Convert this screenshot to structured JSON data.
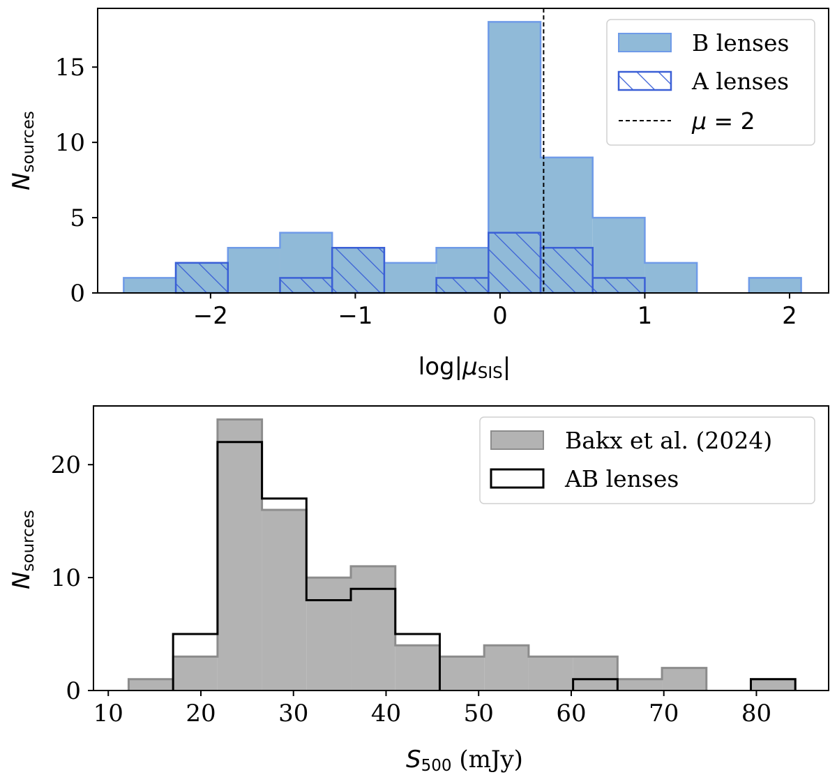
{
  "chart_data": [
    {
      "type": "bar",
      "panel": "top",
      "xlabel": "log|μSIS|",
      "xlabel_parts": {
        "prefix": "log|",
        "symbol": "μ",
        "sub": "SIS",
        "suffix": "|"
      },
      "ylabel_parts": {
        "symbol": "N",
        "sub": "sources"
      },
      "xlim": [
        -2.78,
        2.27
      ],
      "ylim": [
        0,
        18.9
      ],
      "xticks": [
        -2,
        -1,
        0,
        1,
        2
      ],
      "xtick_labels": [
        "−2",
        "−1",
        "0",
        "1",
        "2"
      ],
      "yticks": [
        0,
        5,
        10,
        15
      ],
      "ytick_labels": [
        "0",
        "5",
        "10",
        "15"
      ],
      "bin_edges": [
        -2.6,
        -2.24,
        -1.88,
        -1.52,
        -1.16,
        -0.8,
        -0.44,
        -0.08,
        0.28,
        0.64,
        1.0,
        1.36,
        1.72,
        2.08
      ],
      "series": [
        {
          "name": "B lenses",
          "style": "filled",
          "color": "#90bad8",
          "edge_color": "#6f9be8",
          "values": [
            1,
            2,
            3,
            4,
            3,
            2,
            3,
            18,
            9,
            5,
            2,
            0,
            1
          ]
        },
        {
          "name": "A lenses",
          "style": "hatched",
          "color": "#3a5fd6",
          "values": [
            0,
            2,
            0,
            1,
            3,
            0,
            1,
            4,
            3,
            1,
            0,
            0,
            0
          ]
        }
      ],
      "vline": {
        "x": 0.301,
        "label": "μ = 2",
        "label_parts": {
          "symbol": "μ",
          "rest": " = 2"
        },
        "style": "dashed",
        "color": "#000000"
      },
      "legend": {
        "placement": "top-right",
        "entries": [
          "B lenses",
          "A lenses",
          "μ = 2"
        ]
      }
    },
    {
      "type": "bar",
      "panel": "bottom",
      "xlabel": "S500 (mJy)",
      "xlabel_parts": {
        "symbol": "S",
        "sub": "500",
        "suffix": " (mJy)"
      },
      "ylabel_parts": {
        "symbol": "N",
        "sub": "sources"
      },
      "xlim": [
        8.4,
        87.8
      ],
      "ylim": [
        0,
        25.2
      ],
      "xticks": [
        10,
        20,
        30,
        40,
        50,
        60,
        70,
        80
      ],
      "xtick_labels": [
        "10",
        "20",
        "30",
        "40",
        "50",
        "60",
        "70",
        "80"
      ],
      "yticks": [
        0,
        10,
        20
      ],
      "ytick_labels": [
        "0",
        "10",
        "20"
      ],
      "bin_edges": [
        12.2,
        17.0,
        21.8,
        26.6,
        31.4,
        36.2,
        41.0,
        45.8,
        50.6,
        55.4,
        60.2,
        65.0,
        69.8,
        74.6,
        79.4,
        84.2
      ],
      "series": [
        {
          "name": "Bakx et al. (2024)",
          "style": "filled",
          "color": "#b3b3b3",
          "edge_color": "#8c8c8c",
          "values": [
            1,
            3,
            24,
            16,
            10,
            11,
            4,
            3,
            4,
            3,
            3,
            1,
            2,
            0,
            1
          ]
        },
        {
          "name": "AB lenses",
          "style": "step",
          "color": "#000000",
          "values": [
            0,
            5,
            22,
            17,
            8,
            9,
            5,
            0,
            0,
            0,
            1,
            0,
            0,
            0,
            1
          ]
        }
      ],
      "legend": {
        "placement": "top-right",
        "entries": [
          "Bakx et al. (2024)",
          "AB lenses"
        ]
      }
    }
  ]
}
